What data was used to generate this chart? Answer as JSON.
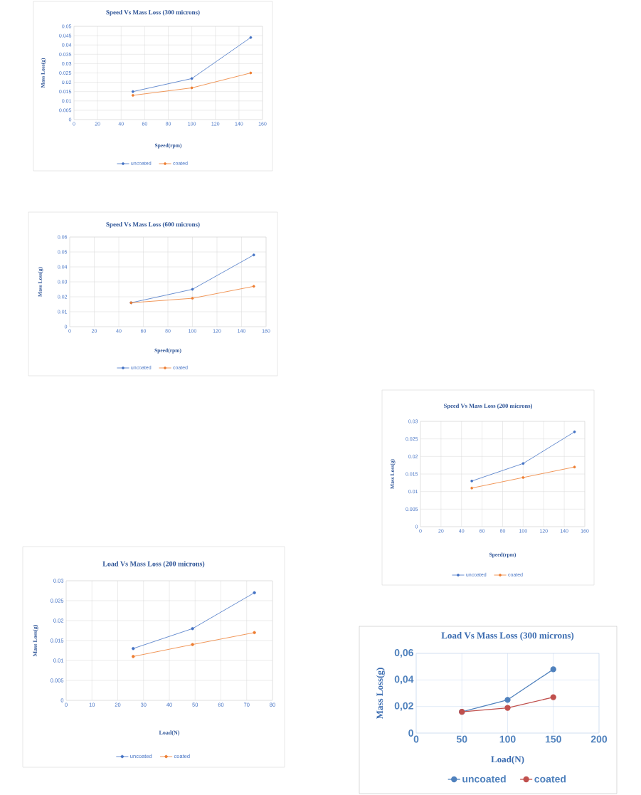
{
  "chart_data": [
    {
      "type": "line",
      "title": "Speed Vs Mass Loss (300 microns)",
      "xlabel": "Speed(rpm)",
      "ylabel": "Mass Loss(g)",
      "x": [
        50,
        100,
        150
      ],
      "series": [
        {
          "name": "uncoated",
          "color": "#4472c4",
          "values": [
            0.015,
            0.022,
            0.044
          ]
        },
        {
          "name": "coated",
          "color": "#ed7d31",
          "values": [
            0.013,
            0.017,
            0.025
          ]
        }
      ],
      "xlim": [
        0,
        160
      ],
      "xticks": [
        0,
        20,
        40,
        60,
        80,
        100,
        120,
        140,
        160
      ],
      "ylim": [
        0,
        0.05
      ],
      "yticks": [
        0,
        0.005,
        0.01,
        0.015,
        0.02,
        0.025,
        0.03,
        0.035,
        0.04,
        0.045,
        0.05
      ],
      "grid": true,
      "legend": "bottom",
      "marker": "circle"
    },
    {
      "type": "line",
      "title": "Speed Vs Mass Loss (600 microns)",
      "xlabel": "Speed(rpm)",
      "ylabel": "Mass Loss(g)",
      "x": [
        50,
        100,
        150
      ],
      "series": [
        {
          "name": "uncoated",
          "color": "#4472c4",
          "values": [
            0.016,
            0.025,
            0.048
          ]
        },
        {
          "name": "coated",
          "color": "#ed7d31",
          "values": [
            0.016,
            0.019,
            0.027
          ]
        }
      ],
      "xlim": [
        0,
        160
      ],
      "xticks": [
        0,
        20,
        40,
        60,
        80,
        100,
        120,
        140,
        160
      ],
      "ylim": [
        0,
        0.06
      ],
      "yticks": [
        0,
        0.01,
        0.02,
        0.03,
        0.04,
        0.05,
        0.06
      ],
      "grid": true,
      "legend": "bottom",
      "marker": "circle"
    },
    {
      "type": "line",
      "title": "Speed Vs Mass Loss (200 microns)",
      "xlabel": "Speed(rpm)",
      "ylabel": "Mass Loss(g)",
      "x": [
        50,
        100,
        150
      ],
      "series": [
        {
          "name": "uncoated",
          "color": "#4472c4",
          "values": [
            0.013,
            0.018,
            0.027
          ]
        },
        {
          "name": "coated",
          "color": "#ed7d31",
          "values": [
            0.011,
            0.014,
            0.017
          ]
        }
      ],
      "xlim": [
        0,
        160
      ],
      "xticks": [
        0,
        20,
        40,
        60,
        80,
        100,
        120,
        140,
        160
      ],
      "ylim": [
        0,
        0.03
      ],
      "yticks": [
        0,
        0.005,
        0.01,
        0.015,
        0.02,
        0.025,
        0.03
      ],
      "grid": true,
      "legend": "bottom",
      "marker": "circle"
    },
    {
      "type": "line",
      "title": "Load Vs Mass Loss (200 microns)",
      "xlabel": "Load(N)",
      "ylabel": "Mass Loss(g)",
      "x": [
        26,
        49,
        73
      ],
      "series": [
        {
          "name": "uncoated",
          "color": "#4472c4",
          "values": [
            0.013,
            0.018,
            0.027
          ]
        },
        {
          "name": "coated",
          "color": "#ed7d31",
          "values": [
            0.011,
            0.014,
            0.017
          ]
        }
      ],
      "xlim": [
        0,
        80
      ],
      "xticks": [
        0,
        10,
        20,
        30,
        40,
        50,
        60,
        70,
        80
      ],
      "ylim": [
        0,
        0.03
      ],
      "yticks": [
        0,
        0.005,
        0.01,
        0.015,
        0.02,
        0.025,
        0.03
      ],
      "grid": true,
      "legend": "bottom",
      "marker": "circle"
    },
    {
      "type": "line",
      "title": "Load Vs Mass Loss (300 microns)",
      "xlabel": "Load(N)",
      "ylabel": "Mass Loss(g)",
      "x": [
        50,
        100,
        150
      ],
      "series": [
        {
          "name": "uncoated",
          "color": "#4f81bd",
          "values": [
            0.016,
            0.025,
            0.048
          ]
        },
        {
          "name": "coated",
          "color": "#c0504d",
          "values": [
            0.016,
            0.019,
            0.027
          ]
        }
      ],
      "xlim": [
        0,
        200
      ],
      "xticks": [
        0,
        50,
        100,
        150,
        200
      ],
      "ylim": [
        0,
        0.06
      ],
      "yticks": [
        0,
        {
          "value": 0.02,
          "label": "0,02"
        },
        {
          "value": 0.04,
          "label": "0,04"
        },
        {
          "value": 0.06,
          "label": "0,06"
        }
      ],
      "grid": true,
      "legend": "bottom",
      "marker": "circle"
    }
  ]
}
